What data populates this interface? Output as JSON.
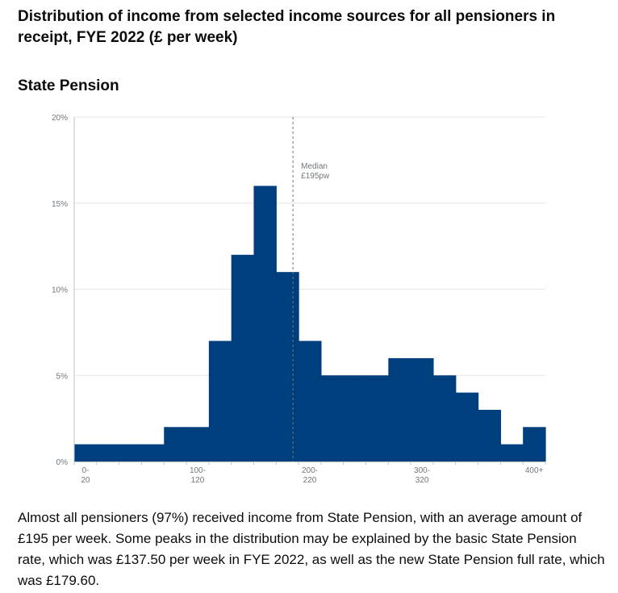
{
  "page": {
    "title": "Distribution of income from selected income sources for all pensioners in receipt, FYE 2022 (£ per week)",
    "chart_heading": "State Pension",
    "description": "Almost all pensioners (97%) received income from State Pension, with an average amount of £195 per week. Some peaks in the distribution may be explained by the basic State Pension rate, which was £137.50 per week in FYE 2022, as well as the new State Pension full rate, which was £179.60."
  },
  "chart_data": {
    "type": "bar",
    "title": "State Pension",
    "xlabel": "",
    "ylabel": "",
    "ylim": [
      0,
      20
    ],
    "yticks": [
      "0%",
      "5%",
      "10%",
      "15%",
      "20%"
    ],
    "grid": true,
    "bar_color": "#003f7d",
    "categories": [
      "0-20",
      "20-40",
      "40-60",
      "60-80",
      "80-100",
      "100-120",
      "120-140",
      "140-160",
      "160-180",
      "180-200",
      "200-220",
      "220-240",
      "240-260",
      "260-280",
      "280-300",
      "300-320",
      "320-340",
      "340-360",
      "360-380",
      "380-400",
      "400+"
    ],
    "values": [
      1,
      1,
      1,
      1,
      2,
      2,
      7,
      12,
      16,
      11,
      7,
      5,
      5,
      5,
      6,
      6,
      5,
      4,
      3,
      1,
      2
    ],
    "tick_labels": [
      {
        "index": 0,
        "line1": "0-",
        "line2": "20"
      },
      {
        "index": 5,
        "line1": "100-",
        "line2": "120"
      },
      {
        "index": 10,
        "line1": "200-",
        "line2": "220"
      },
      {
        "index": 15,
        "line1": "300-",
        "line2": "320"
      },
      {
        "index": 20,
        "line1": "400+",
        "line2": ""
      }
    ],
    "median": {
      "value": 195,
      "label_line1": "Median",
      "label_line2": "£195pw"
    }
  }
}
